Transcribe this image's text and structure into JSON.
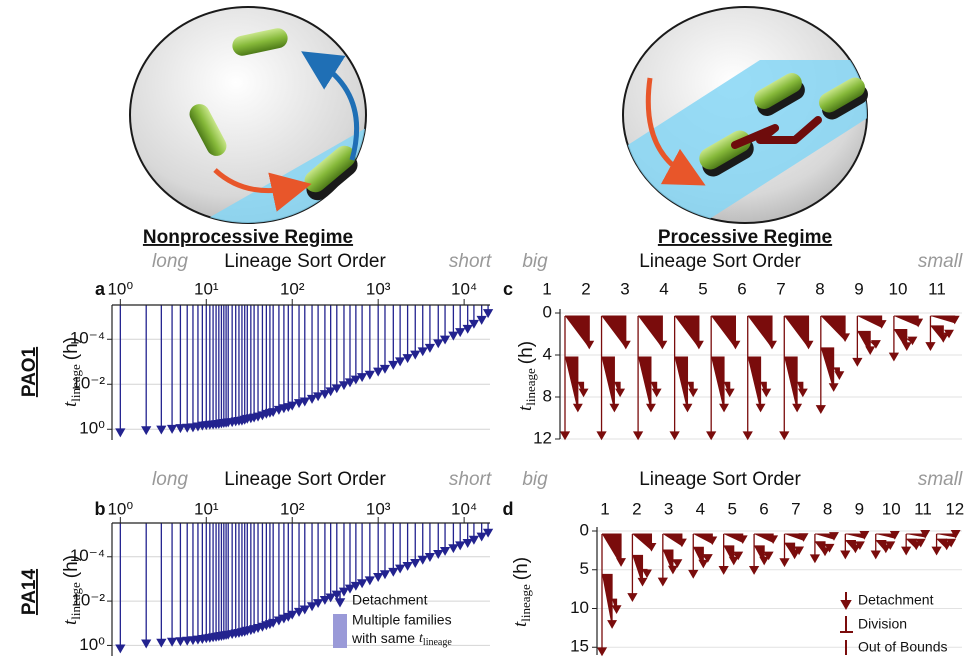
{
  "illustrations": {
    "left_title": "Nonprocessive Regime",
    "right_title": "Processive Regime"
  },
  "row_labels": [
    "PAO1",
    "PA14"
  ],
  "chart_data": [
    {
      "type": "lineage_stem",
      "panel": "a",
      "x_header": {
        "left": "long",
        "center": "Lineage Sort Order",
        "right": "short"
      },
      "log_x": true,
      "log_y": true,
      "y_reversed": true,
      "grid": true,
      "color": "#23238f",
      "y_label": {
        "symbol": "t",
        "subscript": "lineage",
        "unit": "(h)"
      },
      "xlim": [
        0.8,
        20000
      ],
      "xticks": [
        {
          "value": 1,
          "label": "10⁰"
        },
        {
          "value": 10,
          "label": "10¹"
        },
        {
          "value": 100,
          "label": "10²"
        },
        {
          "value": 1000,
          "label": "10³"
        },
        {
          "value": 10000,
          "label": "10⁴"
        }
      ],
      "ylim": [
        3e-06,
        3
      ],
      "yticks": [
        {
          "value": 0.0001,
          "label": "10⁻⁴"
        },
        {
          "value": 0.01,
          "label": "10⁻²"
        },
        {
          "value": 1,
          "label": "10⁰"
        }
      ],
      "x": [
        1,
        2,
        3,
        4,
        5,
        6,
        7,
        8,
        9,
        10,
        11,
        12,
        13,
        14,
        15,
        16,
        17,
        18,
        20,
        22,
        24,
        26,
        28,
        30,
        33,
        36,
        40,
        45,
        50,
        55,
        60,
        70,
        80,
        90,
        100,
        120,
        140,
        170,
        200,
        240,
        280,
        330,
        400,
        470,
        550,
        650,
        800,
        1000,
        1200,
        1500,
        1800,
        2200,
        2700,
        3300,
        4000,
        5000,
        6000,
        7500,
        9000,
        11000,
        13000,
        16000,
        19000
      ],
      "values": [
        2.0,
        1.6,
        1.5,
        1.4,
        1.3,
        1.25,
        1.2,
        1.1,
        1.0,
        0.95,
        0.92,
        0.9,
        0.87,
        0.85,
        0.8,
        0.77,
        0.75,
        0.72,
        0.7,
        0.65,
        0.62,
        0.6,
        0.55,
        0.5,
        0.47,
        0.44,
        0.4,
        0.35,
        0.3,
        0.27,
        0.25,
        0.2,
        0.17,
        0.15,
        0.13,
        0.1,
        0.085,
        0.065,
        0.05,
        0.04,
        0.03,
        0.022,
        0.016,
        0.012,
        0.009,
        0.007,
        0.0055,
        0.004,
        0.003,
        0.002,
        0.0014,
        0.001,
        0.0007,
        0.0005,
        0.00035,
        0.00022,
        0.00015,
        0.0001,
        7e-05,
        5e-05,
        3e-05,
        2e-05,
        1e-05
      ]
    },
    {
      "type": "lineage_stem",
      "panel": "b",
      "x_header": {
        "left": "long",
        "center": "Lineage Sort Order",
        "right": "short"
      },
      "log_x": true,
      "log_y": true,
      "y_reversed": true,
      "grid": true,
      "color": "#23238f",
      "y_label": {
        "symbol": "t",
        "subscript": "lineage",
        "unit": "(h)"
      },
      "xlim": [
        0.8,
        20000
      ],
      "xticks": [
        {
          "value": 1,
          "label": "10⁰"
        },
        {
          "value": 10,
          "label": "10¹"
        },
        {
          "value": 100,
          "label": "10²"
        },
        {
          "value": 1000,
          "label": "10³"
        },
        {
          "value": 10000,
          "label": "10⁴"
        }
      ],
      "ylim": [
        3e-06,
        3
      ],
      "yticks": [
        {
          "value": 0.0001,
          "label": "10⁻⁴"
        },
        {
          "value": 0.01,
          "label": "10⁻²"
        },
        {
          "value": 1,
          "label": "10⁰"
        }
      ],
      "x": [
        1,
        2,
        3,
        4,
        5,
        6,
        7,
        8,
        9,
        10,
        11,
        12,
        13,
        14,
        15,
        16,
        17,
        18,
        20,
        22,
        24,
        26,
        28,
        30,
        33,
        36,
        40,
        45,
        50,
        55,
        60,
        70,
        80,
        90,
        100,
        120,
        140,
        170,
        200,
        240,
        280,
        330,
        400,
        470,
        550,
        650,
        800,
        1000,
        1200,
        1500,
        1800,
        2200,
        2700,
        3300,
        4000,
        5000,
        6000,
        7500,
        9000,
        11000,
        13000,
        16000,
        19000
      ],
      "values": [
        2.0,
        1.2,
        1.1,
        1.0,
        0.95,
        0.9,
        0.85,
        0.8,
        0.75,
        0.7,
        0.67,
        0.63,
        0.6,
        0.57,
        0.55,
        0.52,
        0.5,
        0.48,
        0.45,
        0.42,
        0.4,
        0.37,
        0.35,
        0.32,
        0.3,
        0.27,
        0.24,
        0.21,
        0.18,
        0.16,
        0.14,
        0.11,
        0.09,
        0.075,
        0.06,
        0.045,
        0.035,
        0.025,
        0.018,
        0.013,
        0.01,
        0.0075,
        0.0055,
        0.004,
        0.003,
        0.0023,
        0.0017,
        0.0012,
        0.0009,
        0.0007,
        0.0005,
        0.00038,
        0.00028,
        0.0002,
        0.00015,
        0.00011,
        8e-05,
        6e-05,
        4.5e-05,
        3.5e-05,
        2.5e-05,
        1.8e-05,
        1.2e-05
      ],
      "legend": [
        {
          "name": "Detachment",
          "color": "#23238f"
        },
        {
          "name_lines": [
            "Multiple families",
            "with same"
          ],
          "symbol": "t",
          "subscript": "lineage",
          "color": "#9a9ad8"
        }
      ]
    },
    {
      "type": "lineage_tree",
      "panel": "c",
      "x_header": {
        "left": "big",
        "center": "Lineage Sort Order",
        "right": "small"
      },
      "y_reversed": true,
      "color": "#7a0c0c",
      "y_label": {
        "symbol": "t",
        "subscript": "lineage",
        "unit": "(h)"
      },
      "categories": [
        "1",
        "2",
        "3",
        "4",
        "5",
        "6",
        "7",
        "8",
        "9",
        "10",
        "11"
      ],
      "values": [
        12,
        12,
        12,
        12,
        12,
        12,
        12,
        9.5,
        5,
        4.5,
        3.5
      ],
      "ylim": [
        0,
        12
      ],
      "yticks": [
        0,
        4,
        8,
        12
      ]
    },
    {
      "type": "lineage_tree",
      "panel": "d",
      "x_header": {
        "left": "big",
        "center": "Lineage Sort Order",
        "right": "small"
      },
      "y_reversed": true,
      "color": "#7a0c0c",
      "y_label": {
        "symbol": "t",
        "subscript": "lineage",
        "unit": "(h)"
      },
      "categories": [
        "1",
        "2",
        "3",
        "4",
        "5",
        "6",
        "7",
        "8",
        "9",
        "10",
        "11",
        "12"
      ],
      "values": [
        16,
        9,
        7,
        6,
        5.5,
        5.5,
        4.5,
        4,
        3.5,
        3.5,
        3,
        3
      ],
      "ylim": [
        0,
        16
      ],
      "yticks": [
        0,
        5,
        10,
        15
      ],
      "legend": [
        {
          "name": "Detachment"
        },
        {
          "name": "Division"
        },
        {
          "name": "Out of Bounds"
        }
      ]
    }
  ]
}
